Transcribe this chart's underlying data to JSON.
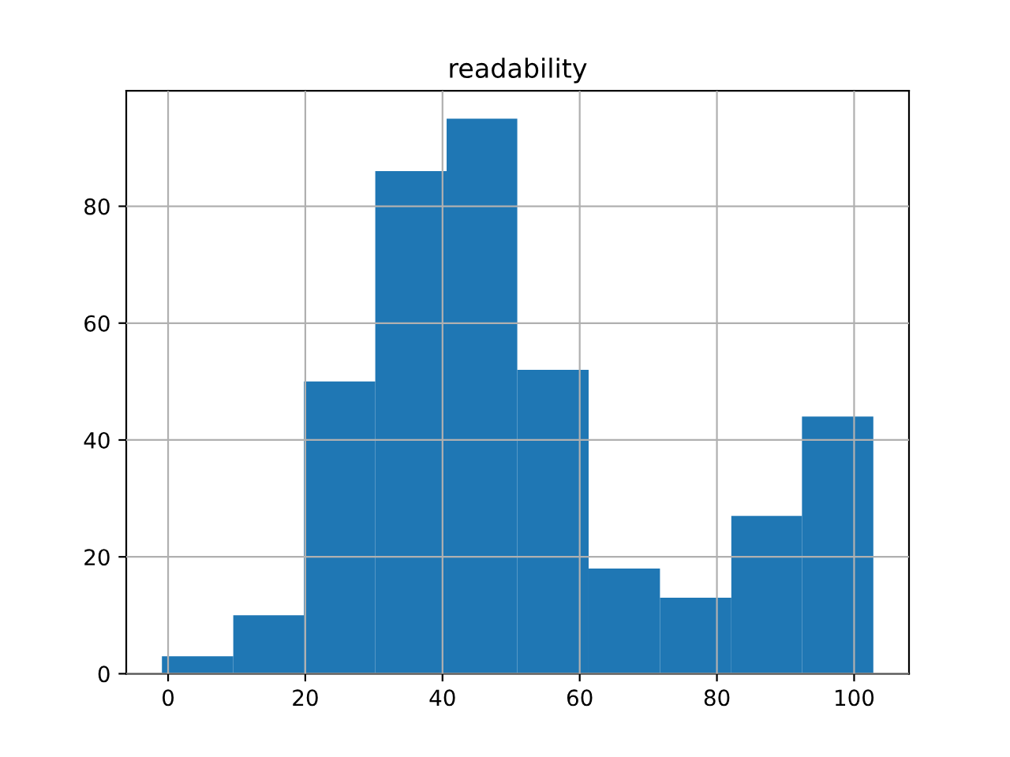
{
  "chart_data": {
    "type": "histogram",
    "title": "readability",
    "bins": [
      -0.9,
      9.5,
      19.8,
      30.2,
      40.6,
      50.9,
      61.3,
      71.7,
      82.1,
      92.4,
      102.8
    ],
    "values": [
      3,
      10,
      50,
      86,
      95,
      52,
      18,
      13,
      27,
      44
    ],
    "color": "#1f77b4",
    "xlim": [
      -6.1,
      108.0
    ],
    "xticks": [
      0,
      20,
      40,
      60,
      80,
      100
    ],
    "ylim": [
      0,
      99.75
    ],
    "yticks": [
      0,
      20,
      40,
      60,
      80
    ],
    "grid": true
  }
}
